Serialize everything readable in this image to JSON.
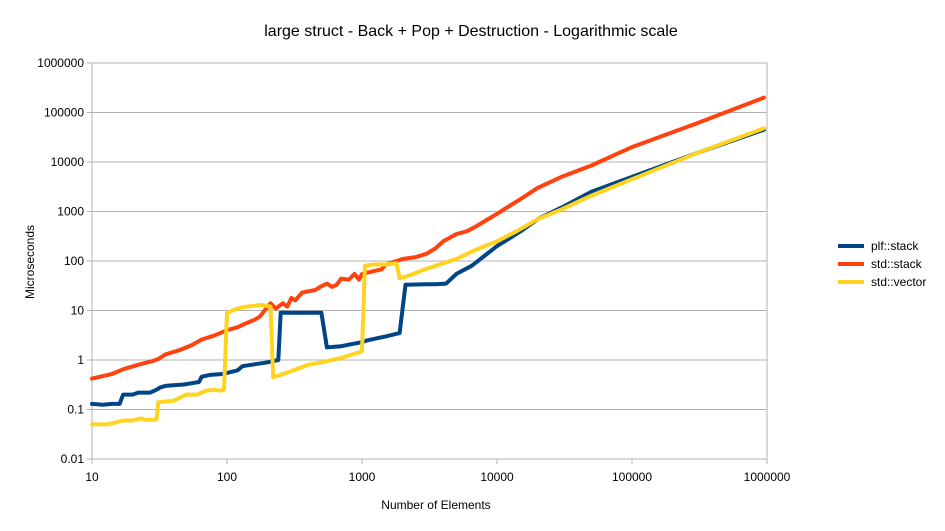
{
  "chart_data": {
    "type": "line",
    "title": "large struct - Back + Pop + Destruction - Logarithmic scale",
    "xlabel": "Number of Elements",
    "ylabel": "Microseconds",
    "x_scale": "log",
    "y_scale": "log",
    "xlim": [
      10,
      1000000
    ],
    "ylim": [
      0.01,
      1000000
    ],
    "x_ticks": [
      "10",
      "100",
      "1000",
      "10000",
      "100000",
      "1000000"
    ],
    "y_ticks": [
      "0.01",
      "0.1",
      "1",
      "10",
      "100",
      "1000",
      "10000",
      "100000",
      "1000000"
    ],
    "grid": "horizontal",
    "legend_position": "right",
    "series": [
      {
        "name": "plf::stack",
        "color": "#004586",
        "points": [
          [
            10,
            0.13
          ],
          [
            12,
            0.125
          ],
          [
            14,
            0.13
          ],
          [
            16,
            0.13
          ],
          [
            17,
            0.2
          ],
          [
            20,
            0.2
          ],
          [
            22,
            0.22
          ],
          [
            27,
            0.22
          ],
          [
            30,
            0.25
          ],
          [
            32,
            0.28
          ],
          [
            35,
            0.3
          ],
          [
            40,
            0.31
          ],
          [
            48,
            0.32
          ],
          [
            55,
            0.34
          ],
          [
            62,
            0.36
          ],
          [
            65,
            0.46
          ],
          [
            75,
            0.5
          ],
          [
            90,
            0.52
          ],
          [
            100,
            0.55
          ],
          [
            120,
            0.62
          ],
          [
            130,
            0.75
          ],
          [
            160,
            0.82
          ],
          [
            200,
            0.9
          ],
          [
            240,
            1.0
          ],
          [
            250,
            9
          ],
          [
            300,
            9
          ],
          [
            400,
            9
          ],
          [
            500,
            9
          ],
          [
            550,
            1.8
          ],
          [
            700,
            1.9
          ],
          [
            1000,
            2.3
          ],
          [
            1100,
            2.5
          ],
          [
            1500,
            3
          ],
          [
            1900,
            3.5
          ],
          [
            2100,
            33
          ],
          [
            3000,
            34
          ],
          [
            3500,
            34
          ],
          [
            4200,
            35
          ],
          [
            5000,
            55
          ],
          [
            6500,
            80
          ],
          [
            10000,
            200
          ],
          [
            15000,
            400
          ],
          [
            20000,
            700
          ],
          [
            30000,
            1200
          ],
          [
            50000,
            2500
          ],
          [
            100000,
            5000
          ],
          [
            300000,
            15000
          ],
          [
            950000,
            45000
          ]
        ]
      },
      {
        "name": "std::stack",
        "color": "#ff420e",
        "points": [
          [
            10,
            0.42
          ],
          [
            14,
            0.52
          ],
          [
            17,
            0.65
          ],
          [
            22,
            0.8
          ],
          [
            28,
            0.95
          ],
          [
            31,
            1.05
          ],
          [
            35,
            1.3
          ],
          [
            45,
            1.6
          ],
          [
            55,
            2.0
          ],
          [
            65,
            2.6
          ],
          [
            80,
            3.1
          ],
          [
            100,
            4.0
          ],
          [
            120,
            4.6
          ],
          [
            140,
            5.6
          ],
          [
            160,
            6.5
          ],
          [
            175,
            7.5
          ],
          [
            200,
            12
          ],
          [
            210,
            14
          ],
          [
            230,
            11
          ],
          [
            260,
            14
          ],
          [
            280,
            12
          ],
          [
            300,
            18
          ],
          [
            320,
            16
          ],
          [
            360,
            23
          ],
          [
            450,
            26
          ],
          [
            500,
            31
          ],
          [
            550,
            35
          ],
          [
            600,
            30
          ],
          [
            650,
            33
          ],
          [
            700,
            44
          ],
          [
            800,
            42
          ],
          [
            880,
            55
          ],
          [
            950,
            42
          ],
          [
            1000,
            55
          ],
          [
            1400,
            68
          ],
          [
            1500,
            85
          ],
          [
            2000,
            110
          ],
          [
            2500,
            120
          ],
          [
            3000,
            140
          ],
          [
            3500,
            180
          ],
          [
            4000,
            250
          ],
          [
            5000,
            350
          ],
          [
            6000,
            400
          ],
          [
            7000,
            500
          ],
          [
            10000,
            900
          ],
          [
            15000,
            1800
          ],
          [
            20000,
            3000
          ],
          [
            30000,
            5000
          ],
          [
            50000,
            8500
          ],
          [
            100000,
            20000
          ],
          [
            300000,
            60000
          ],
          [
            950000,
            200000
          ]
        ]
      },
      {
        "name": "std::vector",
        "color": "#ffd320",
        "points": [
          [
            10,
            0.05
          ],
          [
            13,
            0.05
          ],
          [
            15,
            0.055
          ],
          [
            17,
            0.06
          ],
          [
            20,
            0.06
          ],
          [
            23,
            0.066
          ],
          [
            25,
            0.062
          ],
          [
            30,
            0.062
          ],
          [
            31,
            0.14
          ],
          [
            40,
            0.15
          ],
          [
            50,
            0.2
          ],
          [
            60,
            0.2
          ],
          [
            70,
            0.24
          ],
          [
            80,
            0.25
          ],
          [
            90,
            0.24
          ],
          [
            95,
            0.25
          ],
          [
            100,
            9
          ],
          [
            120,
            11
          ],
          [
            140,
            12
          ],
          [
            160,
            12.5
          ],
          [
            180,
            13
          ],
          [
            210,
            12
          ],
          [
            220,
            0.45
          ],
          [
            250,
            0.5
          ],
          [
            300,
            0.6
          ],
          [
            400,
            0.8
          ],
          [
            500,
            0.9
          ],
          [
            700,
            1.1
          ],
          [
            1000,
            1.5
          ],
          [
            1050,
            80
          ],
          [
            1200,
            85
          ],
          [
            1500,
            85
          ],
          [
            1800,
            90
          ],
          [
            1900,
            45
          ],
          [
            2200,
            50
          ],
          [
            2800,
            65
          ],
          [
            3500,
            80
          ],
          [
            5000,
            110
          ],
          [
            7000,
            170
          ],
          [
            10000,
            250
          ],
          [
            14000,
            400
          ],
          [
            20000,
            700
          ],
          [
            30000,
            1100
          ],
          [
            50000,
            2100
          ],
          [
            100000,
            4500
          ],
          [
            300000,
            15000
          ],
          [
            950000,
            48000
          ]
        ]
      }
    ]
  }
}
